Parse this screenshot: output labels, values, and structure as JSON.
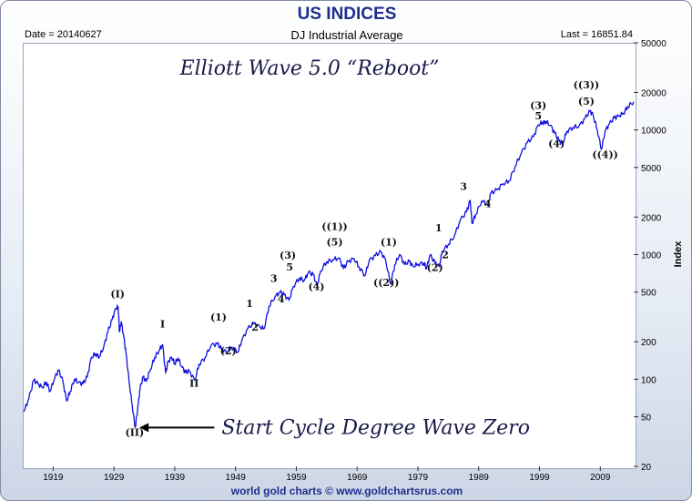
{
  "title": "US INDICES",
  "header": {
    "date": "Date = 20140627",
    "series": "DJ Industrial Average",
    "last": "Last = 16851.84"
  },
  "footer": "world gold charts © www.goldchartsrus.com",
  "chart_data": {
    "type": "line",
    "title": "Elliott Wave 5.0 “Reboot”",
    "ylabel": "Index",
    "xlabel": "",
    "y_scale": "log",
    "xlim": [
      1914,
      2014.5
    ],
    "ylim": [
      20,
      50000
    ],
    "xticks": [
      "1919",
      "1929",
      "1939",
      "1949",
      "1959",
      "1969",
      "1979",
      "1989",
      "1999",
      "2009"
    ],
    "yticks": [
      20,
      50,
      100,
      200,
      500,
      1000,
      2000,
      5000,
      10000,
      20000,
      50000
    ],
    "grid": false,
    "series": [
      {
        "color": "#1010e0",
        "x": [
          1914.2,
          1915,
          1915.8,
          1916.5,
          1917.2,
          1917.9,
          1918.5,
          1919.3,
          1919.9,
          1920.6,
          1921.2,
          1921.8,
          1922.5,
          1923.2,
          1923.9,
          1924.6,
          1925.3,
          1926,
          1926.6,
          1927.3,
          1928,
          1928.7,
          1929.3,
          1929.7,
          1929.9,
          1930.2,
          1930.6,
          1931,
          1931.5,
          1932,
          1932.5,
          1932.9,
          1933.3,
          1933.8,
          1934.3,
          1935,
          1935.7,
          1936.4,
          1937,
          1937.5,
          1937.9,
          1938.5,
          1939,
          1939.5,
          1940.2,
          1940.8,
          1941.4,
          1942.3,
          1943,
          1944,
          1945,
          1946,
          1946.7,
          1947.5,
          1948.3,
          1949.4,
          1950,
          1951,
          1952,
          1953,
          1953.7,
          1954.5,
          1955.5,
          1956.3,
          1957,
          1957.8,
          1958.5,
          1959.5,
          1960.3,
          1961,
          1961.8,
          1962.4,
          1963,
          1964,
          1965,
          1966,
          1966.8,
          1967.5,
          1968.5,
          1969.3,
          1970.3,
          1971,
          1972,
          1972.9,
          1973.7,
          1974.5,
          1975.2,
          1976,
          1976.8,
          1977.6,
          1978.2,
          1979,
          1980,
          1980.4,
          1981,
          1981.8,
          1982.5,
          1983,
          1984,
          1985,
          1986,
          1987,
          1987.6,
          1987.9,
          1988.5,
          1989.5,
          1990.5,
          1991,
          1992,
          1993,
          1994,
          1995,
          1996,
          1997,
          1998,
          1998.8,
          1999.5,
          2000,
          2000.8,
          2001.5,
          2002.2,
          2002.8,
          2003.5,
          2004.5,
          2005.5,
          2006.5,
          2007.3,
          2007.8,
          2008.5,
          2009.2,
          2009.8,
          2010.5,
          2011.3,
          2012,
          2012.8,
          2013.5,
          2014.5
        ],
        "values": [
          55,
          70,
          98,
          92,
          86,
          95,
          80,
          104,
          118,
          96,
          67,
          80,
          100,
          94,
          92,
          104,
          150,
          160,
          152,
          180,
          240,
          300,
          370,
          380,
          240,
          290,
          220,
          160,
          95,
          62,
          41,
          58,
          85,
          104,
          96,
          120,
          150,
          170,
          190,
          112,
          138,
          150,
          134,
          148,
          125,
          113,
          116,
          98,
          132,
          150,
          188,
          192,
          175,
          165,
          182,
          167,
          203,
          254,
          281,
          263,
          255,
          385,
          460,
          500,
          475,
          430,
          555,
          650,
          620,
          720,
          690,
          560,
          740,
          880,
          910,
          940,
          770,
          880,
          930,
          800,
          680,
          900,
          980,
          1050,
          900,
          580,
          830,
          1004,
          830,
          880,
          805,
          840,
          860,
          770,
          990,
          860,
          800,
          1065,
          1210,
          1410,
          1900,
          2200,
          2722,
          1780,
          2100,
          2700,
          2500,
          3100,
          3300,
          3700,
          3900,
          5100,
          6500,
          7900,
          8800,
          11000,
          11500,
          11700,
          10900,
          9400,
          8200,
          7700,
          9800,
          10500,
          10700,
          12400,
          14100,
          13300,
          10000,
          7000,
          9800,
          11200,
          12500,
          12900,
          13600,
          15400,
          16850
        ]
      }
    ],
    "annotations": [
      {
        "label": "(I)",
        "x": 1929.6,
        "y": 455
      },
      {
        "label": "(II)",
        "x": 1932.4,
        "y": 35
      },
      {
        "label": "I",
        "x": 1937,
        "y": 260
      },
      {
        "label": "II",
        "x": 1942.2,
        "y": 87
      },
      {
        "label": "(1)",
        "x": 1946.2,
        "y": 295
      },
      {
        "label": "(2)",
        "x": 1947.8,
        "y": 158
      },
      {
        "label": "1",
        "x": 1951.3,
        "y": 380
      },
      {
        "label": "2",
        "x": 1952.2,
        "y": 245
      },
      {
        "label": "3",
        "x": 1955.3,
        "y": 605
      },
      {
        "label": "4",
        "x": 1956.5,
        "y": 415
      },
      {
        "label": "(3)",
        "x": 1957.6,
        "y": 930
      },
      {
        "label": "5",
        "x": 1957.9,
        "y": 745
      },
      {
        "label": "(4)",
        "x": 1962.3,
        "y": 520
      },
      {
        "label": "((1))",
        "x": 1965.3,
        "y": 1580
      },
      {
        "label": "(5)",
        "x": 1965.3,
        "y": 1185
      },
      {
        "label": "(1)",
        "x": 1974.2,
        "y": 1185
      },
      {
        "label": "((2))",
        "x": 1973.8,
        "y": 560
      },
      {
        "label": "1",
        "x": 1982.4,
        "y": 1530
      },
      {
        "label": "2",
        "x": 1983.5,
        "y": 935
      },
      {
        "label": "(2)",
        "x": 1981.8,
        "y": 738
      },
      {
        "label": "3",
        "x": 1986.5,
        "y": 3300
      },
      {
        "label": "4",
        "x": 1990.5,
        "y": 2400
      },
      {
        "label": "(3)",
        "x": 1998.8,
        "y": 14800
      },
      {
        "label": "5",
        "x": 1998.8,
        "y": 12200
      },
      {
        "label": "(4)",
        "x": 2001.8,
        "y": 7300
      },
      {
        "label": "((3))",
        "x": 2006.7,
        "y": 21600
      },
      {
        "label": "(5)",
        "x": 2006.7,
        "y": 15900
      },
      {
        "label": "((4))",
        "x": 2009.8,
        "y": 5950
      }
    ],
    "note": {
      "text": "Start Cycle Degree Wave Zero",
      "x": 1946.7,
      "y": 41
    }
  }
}
